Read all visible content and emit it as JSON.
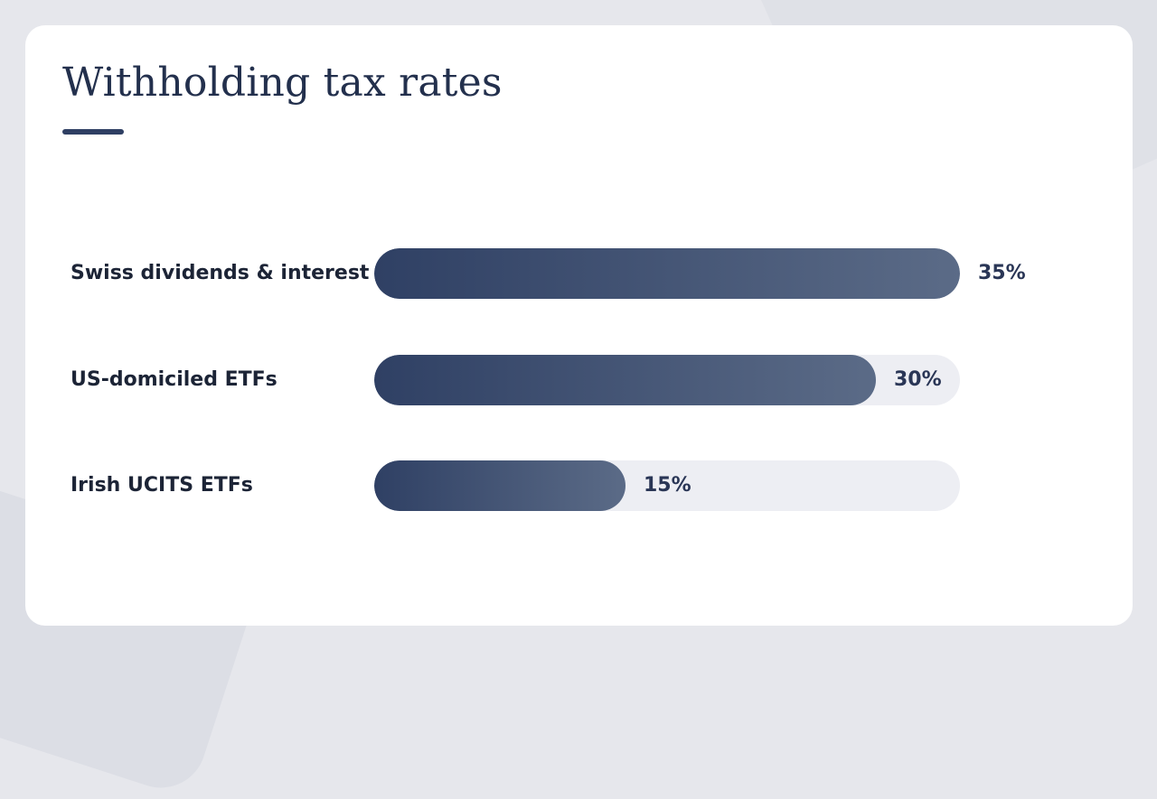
{
  "title": "Withholding tax rates",
  "colors": {
    "accent": "#2f3f63",
    "bar_start": "#2f4064",
    "bar_end": "#5b6b87",
    "track": "#edeef3",
    "card": "#ffffff",
    "background": "#e6e7ec"
  },
  "chart_data": {
    "type": "bar",
    "orientation": "horizontal",
    "title": "Withholding tax rates",
    "xlabel": "",
    "ylabel": "",
    "categories": [
      "Swiss dividends & interest",
      "US-domiciled ETFs",
      "Irish UCITS ETFs"
    ],
    "values": [
      35,
      30,
      15
    ],
    "value_labels": [
      "35%",
      "30%",
      "15%"
    ],
    "unit": "%",
    "xlim": [
      0,
      35
    ],
    "grid": false,
    "legend": "none"
  }
}
